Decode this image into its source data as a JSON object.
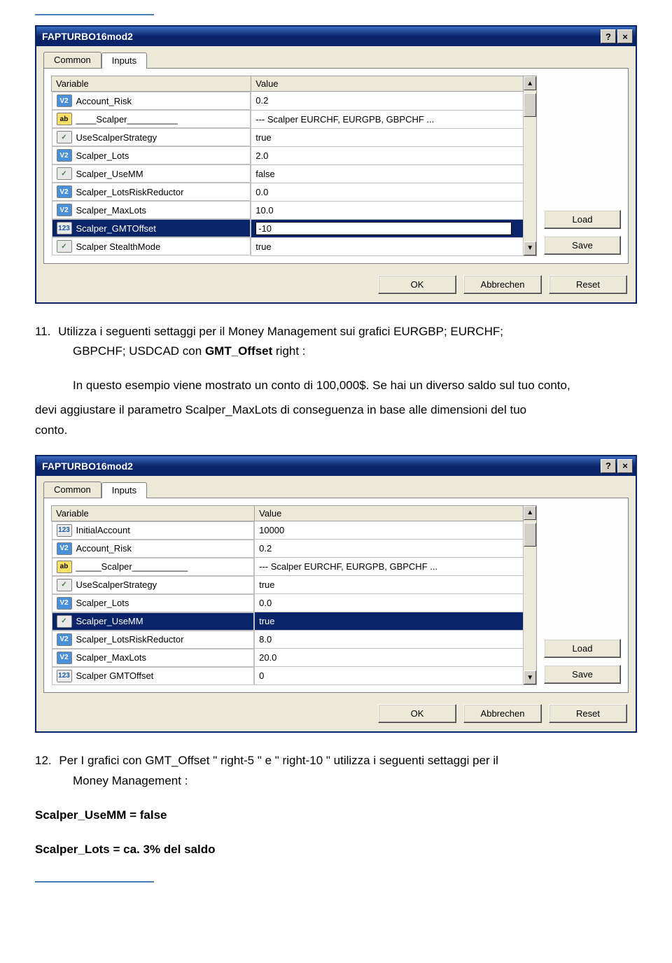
{
  "page": {
    "hr_color": "#4a7fb5"
  },
  "dialog1": {
    "title": "FAPTURBO16mod2",
    "tabs": {
      "common": "Common",
      "inputs": "Inputs"
    },
    "headers": {
      "variable": "Variable",
      "value": "Value"
    },
    "rows": [
      {
        "type": "v2",
        "name": "Account_Risk",
        "value": "0.2",
        "selected": false
      },
      {
        "type": "ab",
        "name": "____Scalper__________",
        "value": "--- Scalper EURCHF, EURGPB, GBPCHF ...",
        "selected": false
      },
      {
        "type": "bool",
        "name": "UseScalperStrategy",
        "value": "true",
        "selected": false
      },
      {
        "type": "v2",
        "name": "Scalper_Lots",
        "value": "2.0",
        "selected": false
      },
      {
        "type": "bool",
        "name": "Scalper_UseMM",
        "value": "false",
        "selected": false
      },
      {
        "type": "v2",
        "name": "Scalper_LotsRiskReductor",
        "value": "0.0",
        "selected": false
      },
      {
        "type": "v2",
        "name": "Scalper_MaxLots",
        "value": "10.0",
        "selected": false
      },
      {
        "type": "123",
        "name": "Scalper_GMTOffset",
        "value": "-10",
        "selected": true,
        "editing": true
      },
      {
        "type": "bool",
        "name": "Scalper  StealthMode",
        "value": "true",
        "selected": false
      }
    ],
    "buttons": {
      "load": "Load",
      "save": "Save",
      "ok": "OK",
      "cancel": "Abbrechen",
      "reset": "Reset"
    },
    "scroll": {
      "thumb_top_pct": 2
    }
  },
  "text": {
    "item11_num": "11.",
    "item11_line1": "Utilizza i seguenti settaggi per il Money Management sui grafici EURGBP; EURCHF;",
    "item11_line2_a": "GBPCHF; USDCAD con ",
    "item11_line2_bold": "GMT_Offset",
    "item11_line2_b": " right :",
    "item11_para2_a": "In questo esempio viene mostrato un conto di 100,000$. Se hai un diverso saldo sul tuo conto,",
    "item11_para2_b": "devi aggiustare il parametro    Scalper_MaxLots di conseguenza in base alle dimensioni del tuo",
    "item11_para2_c": "conto.",
    "item12_num": "12.",
    "item12_line1_a": "Per I grafici con GMT_Offset    \" right-5 \" e    \" right-10 \" utilizza i seguenti settaggi per il",
    "item12_line1_b": "Money Management :",
    "s_usemm": "Scalper_UseMM = false",
    "s_lots": "Scalper_Lots = ca. 3% del saldo"
  },
  "dialog2": {
    "title": "FAPTURBO16mod2",
    "tabs": {
      "common": "Common",
      "inputs": "Inputs"
    },
    "headers": {
      "variable": "Variable",
      "value": "Value"
    },
    "rows": [
      {
        "type": "123",
        "name": "InitialAccount",
        "value": "10000",
        "selected": false
      },
      {
        "type": "v2",
        "name": "Account_Risk",
        "value": "0.2",
        "selected": false
      },
      {
        "type": "ab",
        "name": "_____Scalper___________",
        "value": "--- Scalper EURCHF, EURGPB, GBPCHF ...",
        "selected": false
      },
      {
        "type": "bool",
        "name": "UseScalperStrategy",
        "value": "true",
        "selected": false
      },
      {
        "type": "v2",
        "name": "Scalper_Lots",
        "value": "0.0",
        "selected": false
      },
      {
        "type": "bool",
        "name": "Scalper_UseMM",
        "value": "true",
        "selected": true
      },
      {
        "type": "v2",
        "name": "Scalper_LotsRiskReductor",
        "value": "8.0",
        "selected": false
      },
      {
        "type": "v2",
        "name": "Scalper_MaxLots",
        "value": "20.0",
        "selected": false
      },
      {
        "type": "123",
        "name": "Scalper  GMTOffset",
        "value": "0",
        "selected": false
      }
    ],
    "buttons": {
      "load": "Load",
      "save": "Save",
      "ok": "OK",
      "cancel": "Abbrechen",
      "reset": "Reset"
    },
    "scroll": {
      "thumb_top_pct": 2
    }
  },
  "type_badge_labels": {
    "v2": "V2",
    "ab": "ab",
    "bool": "✓",
    "123": "123"
  },
  "type_badge_classes": {
    "v2": "type-v2",
    "ab": "type-ab",
    "bool": "type-bool",
    "123": "type-123"
  }
}
